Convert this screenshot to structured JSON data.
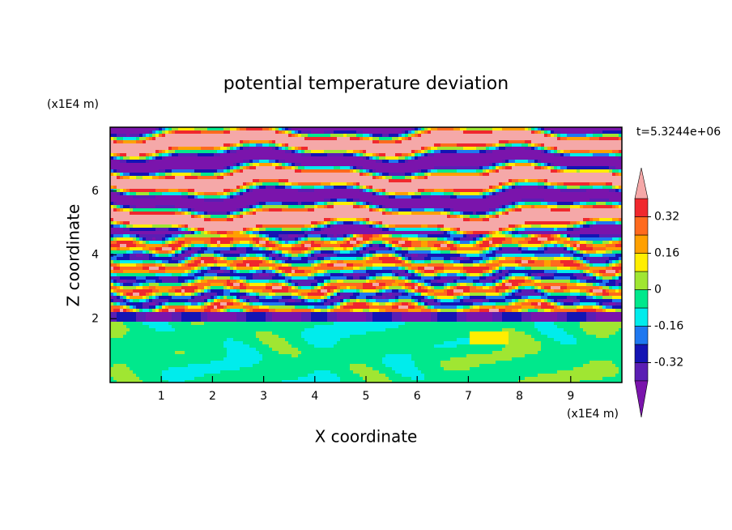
{
  "chart_data": {
    "type": "contour",
    "title": "potential temperature deviation",
    "x_label": "X coordinate",
    "y_label": "Z coordinate",
    "x_unit": "(x1E4 m)",
    "y_unit": "(x1E4 m)",
    "time_label": "t=5.3244e+06",
    "xlim": [
      0,
      10
    ],
    "ylim": [
      0,
      8
    ],
    "xticks": [
      1,
      2,
      3,
      4,
      5,
      6,
      7,
      8,
      9
    ],
    "yticks": [
      2,
      4,
      6
    ],
    "levels": [
      -0.4,
      -0.32,
      -0.24,
      -0.16,
      -0.08,
      0,
      0.08,
      0.16,
      0.24,
      0.32,
      0.4
    ],
    "colors": [
      "#7a14ac",
      "#5a1eb4",
      "#1414b4",
      "#1e78f0",
      "#00ecec",
      "#00e88c",
      "#a0e632",
      "#ffee00",
      "#ffa000",
      "#ff6a1e",
      "#f0282d",
      "#f5a8a8"
    ],
    "colorbar_ticks": [
      -0.32,
      -0.16,
      0,
      0.16,
      0.32
    ]
  }
}
